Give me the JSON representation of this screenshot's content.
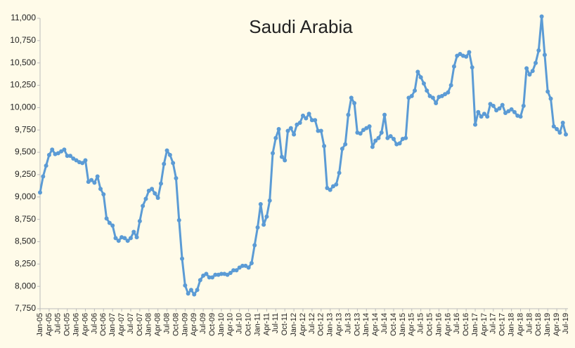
{
  "chart_data": {
    "type": "line",
    "title": "Saudi Arabia",
    "categories": [
      "Jan-05",
      null,
      null,
      "Apr-05",
      null,
      null,
      "Jul-05",
      null,
      null,
      "Oct-05",
      null,
      null,
      "Jan-06",
      null,
      null,
      "Apr-06",
      null,
      null,
      "Jul-06",
      null,
      null,
      "Oct-06",
      null,
      null,
      "Jan-07",
      null,
      null,
      "Apr-07",
      null,
      null,
      "Jul-07",
      null,
      null,
      "Oct-07",
      null,
      null,
      "Jan-08",
      null,
      null,
      "Apr-08",
      null,
      null,
      "Jul-08",
      null,
      null,
      "Oct-08",
      null,
      null,
      "Jan-09",
      null,
      null,
      "Apr-09",
      null,
      null,
      "Jul-09",
      null,
      null,
      "Oct-09",
      null,
      null,
      "Jan-10",
      null,
      null,
      "Apr-10",
      null,
      null,
      "Jul-10",
      null,
      null,
      "Oct-10",
      null,
      null,
      "Jan-11",
      null,
      null,
      "Apr-11",
      null,
      null,
      "Jul-11",
      null,
      null,
      "Oct-11",
      null,
      null,
      "Jan-12",
      null,
      null,
      "Apr-12",
      null,
      null,
      "Jul-12",
      null,
      null,
      "Oct-12",
      null,
      null,
      "Jan-13",
      null,
      null,
      "Apr-13",
      null,
      null,
      "Jul-13",
      null,
      null,
      "Oct-13",
      null,
      null,
      "Jan-14",
      null,
      null,
      "Apr-14",
      null,
      null,
      "Jul-14",
      null,
      null,
      "Oct-14",
      null,
      null,
      "Jan-15",
      null,
      null,
      "Apr-15",
      null,
      null,
      "Jul-15",
      null,
      null,
      "Oct-15",
      null,
      null,
      "Jan-16",
      null,
      null,
      "Apr-16",
      null,
      null,
      "Jul-16",
      null,
      null,
      "Oct-16",
      null,
      null,
      "Jan-17",
      null,
      null,
      "Apr-17",
      null,
      null,
      "Jul-17",
      null,
      null,
      "Oct-17",
      null,
      null,
      "Jan-18",
      null,
      null,
      "Apr-18",
      null,
      null,
      "Jul-18",
      null,
      null,
      "Oct-18",
      null,
      null,
      "Jan-19",
      null,
      null,
      "Apr-19",
      null,
      null,
      "Jul-19"
    ],
    "series": [
      {
        "color": "#5b9bd5",
        "values": [
          9050,
          9230,
          9350,
          9470,
          9530,
          9480,
          9490,
          9510,
          9530,
          9460,
          9460,
          9430,
          9410,
          9390,
          9380,
          9410,
          9170,
          9190,
          9160,
          9230,
          9090,
          9030,
          8760,
          8710,
          8680,
          8540,
          8510,
          8550,
          8540,
          8510,
          8540,
          8610,
          8550,
          8730,
          8900,
          8980,
          9070,
          9090,
          9040,
          8990,
          9150,
          9370,
          9520,
          9470,
          9380,
          9210,
          8740,
          8310,
          8010,
          7920,
          7960,
          7910,
          7960,
          8070,
          8120,
          8140,
          8100,
          8100,
          8130,
          8130,
          8140,
          8140,
          8130,
          8150,
          8180,
          8180,
          8210,
          8230,
          8230,
          8210,
          8260,
          8460,
          8660,
          8920,
          8690,
          8780,
          8960,
          9490,
          9660,
          9760,
          9450,
          9410,
          9740,
          9770,
          9700,
          9810,
          9830,
          9910,
          9880,
          9930,
          9860,
          9860,
          9740,
          9740,
          9570,
          9100,
          9080,
          9120,
          9140,
          9270,
          9540,
          9590,
          9920,
          10110,
          10050,
          9720,
          9710,
          9750,
          9770,
          9790,
          9560,
          9630,
          9660,
          9720,
          9920,
          9660,
          9680,
          9650,
          9590,
          9600,
          9650,
          9660,
          10110,
          10130,
          10190,
          10400,
          10340,
          10270,
          10190,
          10130,
          10110,
          10050,
          10120,
          10130,
          10150,
          10170,
          10250,
          10460,
          10580,
          10600,
          10580,
          10570,
          10620,
          10450,
          9810,
          9950,
          9900,
          9930,
          9900,
          10040,
          10020,
          9970,
          9990,
          10030,
          9940,
          9960,
          9980,
          9950,
          9910,
          9900,
          10020,
          10440,
          10370,
          10410,
          10500,
          10640,
          11020,
          10590,
          10180,
          10100,
          9790,
          9760,
          9720,
          9830,
          9700
        ]
      }
    ],
    "ylim": [
      7750,
      11000
    ],
    "yticks": [
      {
        "value": 7750,
        "label": "7,750"
      },
      {
        "value": 8000,
        "label": "8,000"
      },
      {
        "value": 8250,
        "label": "8,250"
      },
      {
        "value": 8500,
        "label": "8,500"
      },
      {
        "value": 8750,
        "label": "8,750"
      },
      {
        "value": 9000,
        "label": "9,000"
      },
      {
        "value": 9250,
        "label": "9,250"
      },
      {
        "value": 9500,
        "label": "9,500"
      },
      {
        "value": 9750,
        "label": "9,750"
      },
      {
        "value": 10000,
        "label": "10,000"
      },
      {
        "value": 10250,
        "label": "10,250"
      },
      {
        "value": 10500,
        "label": "10,500"
      },
      {
        "value": 10750,
        "label": "10,750"
      },
      {
        "value": 11000,
        "label": "11,000"
      }
    ],
    "grid": false
  }
}
